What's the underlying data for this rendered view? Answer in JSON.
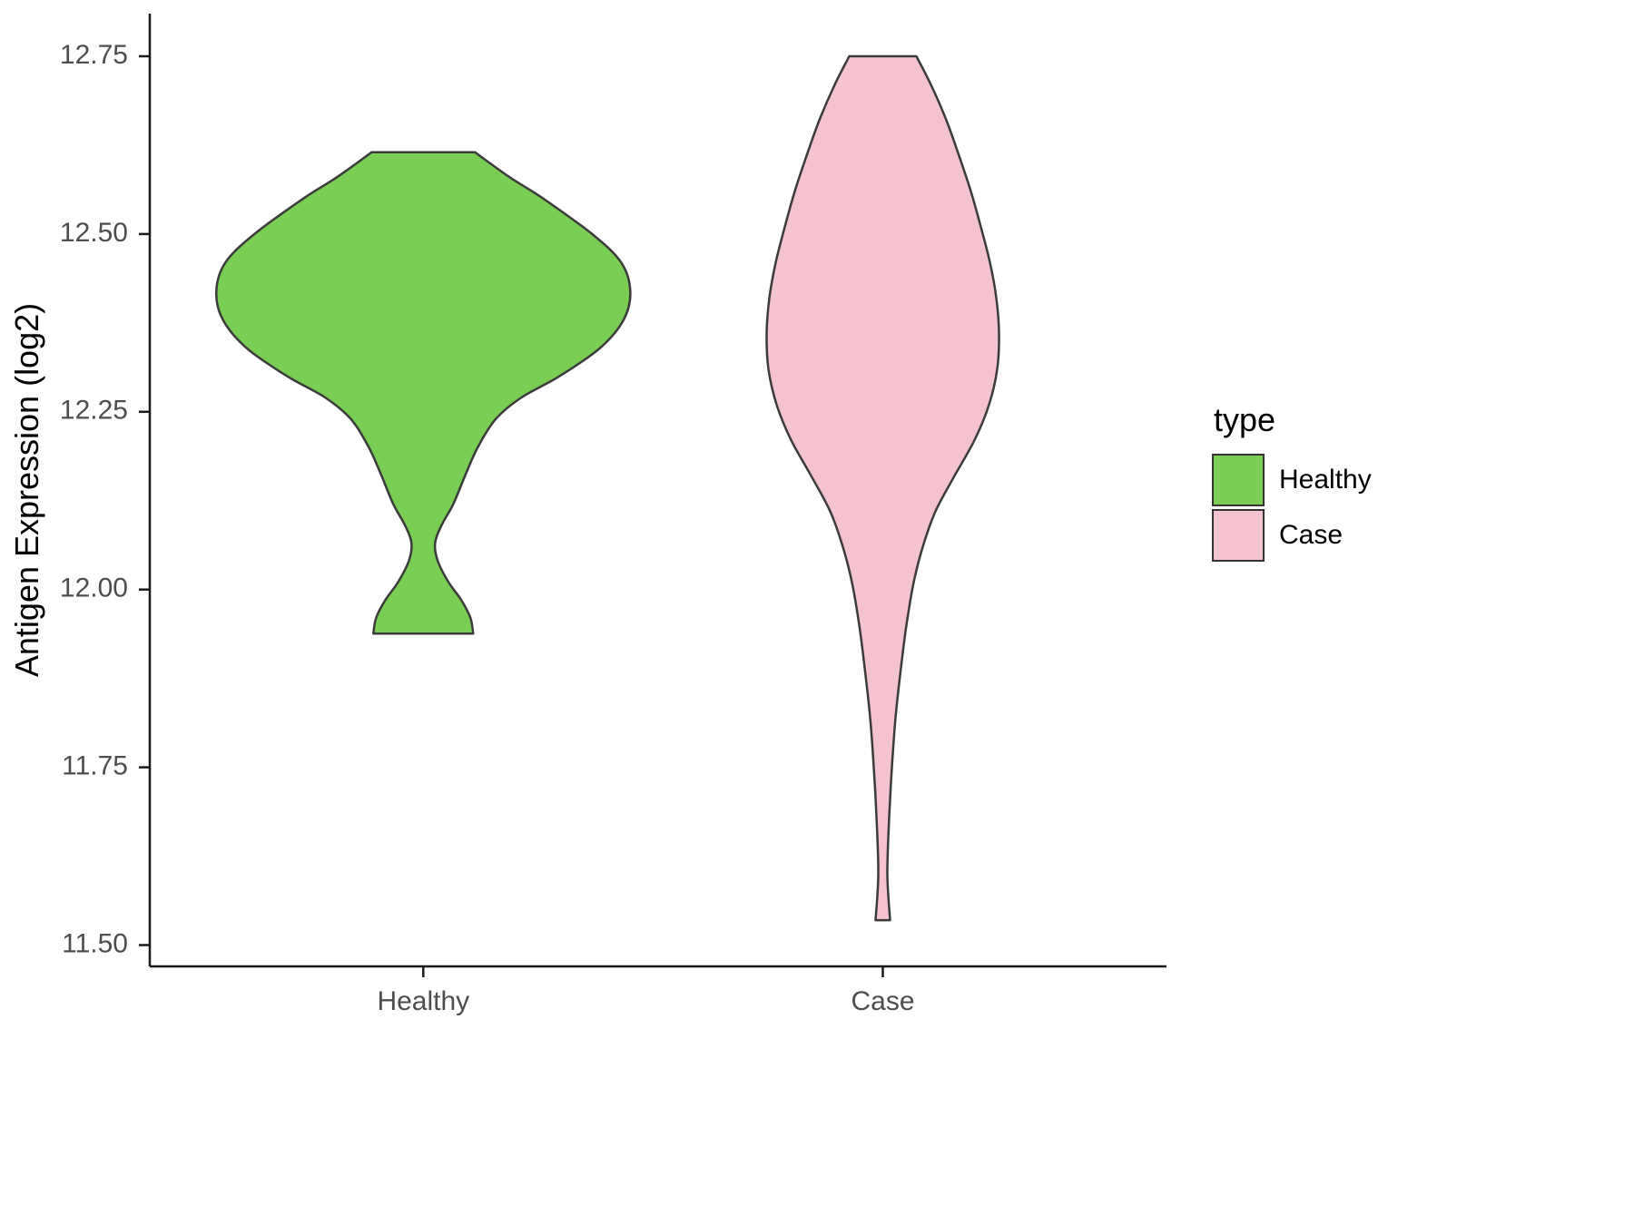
{
  "chart_data": {
    "type": "violin",
    "title": "",
    "xlabel": "",
    "ylabel": "Antigen Expression (log2)",
    "ylim": [
      11.47,
      12.81
    ],
    "ytick_labels": [
      "11.50",
      "11.75",
      "12.00",
      "12.25",
      "12.50",
      "12.75"
    ],
    "ytick_values": [
      11.5,
      11.75,
      12.0,
      12.25,
      12.5,
      12.75
    ],
    "categories": [
      "Healthy",
      "Case"
    ],
    "grid": false,
    "legend_position": "right",
    "legend": {
      "title": "type",
      "entries": [
        {
          "label": "Healthy",
          "color": "#7BCE54"
        },
        {
          "label": "Case",
          "color": "#F5C2CF"
        }
      ]
    },
    "stroke_color": "#3B3B3B",
    "axis_color": "#1a1a1a",
    "tick_text_color": "#4d4d4d",
    "series": [
      {
        "name": "Healthy",
        "fill": "#7BCE54",
        "x_frac": 0.269,
        "profile": [
          [
            12.615,
            57
          ],
          [
            12.58,
            95
          ],
          [
            12.55,
            132
          ],
          [
            12.5,
            186
          ],
          [
            12.46,
            218
          ],
          [
            12.42,
            228
          ],
          [
            12.38,
            221
          ],
          [
            12.34,
            195
          ],
          [
            12.3,
            150
          ],
          [
            12.27,
            108
          ],
          [
            12.24,
            80
          ],
          [
            12.2,
            60
          ],
          [
            12.16,
            46
          ],
          [
            12.12,
            33
          ],
          [
            12.09,
            20
          ],
          [
            12.065,
            13
          ],
          [
            12.04,
            16
          ],
          [
            12.01,
            28
          ],
          [
            11.985,
            42
          ],
          [
            11.96,
            52
          ],
          [
            11.938,
            55
          ]
        ]
      },
      {
        "name": "Case",
        "fill": "#F5C2CF",
        "x_frac": 0.721,
        "profile": [
          [
            12.75,
            37
          ],
          [
            12.71,
            53
          ],
          [
            12.66,
            70
          ],
          [
            12.61,
            84
          ],
          [
            12.56,
            97
          ],
          [
            12.51,
            108
          ],
          [
            12.46,
            118
          ],
          [
            12.41,
            125
          ],
          [
            12.36,
            128
          ],
          [
            12.31,
            126
          ],
          [
            12.26,
            117
          ],
          [
            12.21,
            101
          ],
          [
            12.16,
            79
          ],
          [
            12.11,
            58
          ],
          [
            12.06,
            44
          ],
          [
            12.01,
            34
          ],
          [
            11.95,
            26
          ],
          [
            11.89,
            20
          ],
          [
            11.82,
            14
          ],
          [
            11.75,
            10
          ],
          [
            11.68,
            7
          ],
          [
            11.6,
            5
          ],
          [
            11.535,
            8
          ]
        ]
      }
    ]
  }
}
